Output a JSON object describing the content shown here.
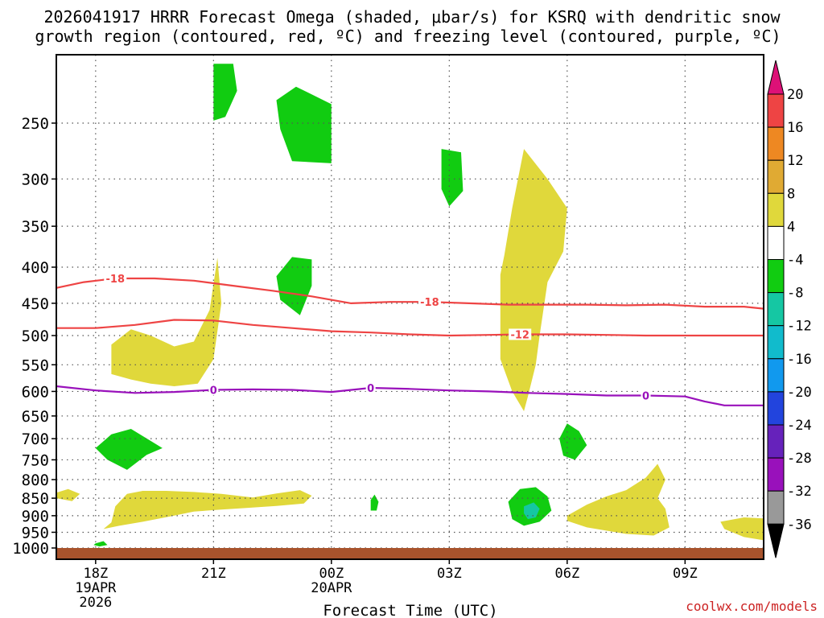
{
  "chart_data": {
    "type": "heatmap",
    "title_line1": "2026041917 HRRR Forecast Omega (shaded, μbar/s) for KSRQ with dendritic snow",
    "title_line2": "growth region (contoured, red, ºC) and freezing level (contoured, purple, ºC)",
    "xlabel": "Forecast Time (UTC)",
    "ylabel": "",
    "credit": "coolwx.com/models",
    "y_axis": {
      "scale": "log-pressure",
      "range": [
        1000,
        200
      ],
      "ticks": [
        {
          "value": 250,
          "label": "250"
        },
        {
          "value": 300,
          "label": "300"
        },
        {
          "value": 350,
          "label": "350"
        },
        {
          "value": 400,
          "label": "400"
        },
        {
          "value": 450,
          "label": "450"
        },
        {
          "value": 500,
          "label": "500"
        },
        {
          "value": 550,
          "label": "550"
        },
        {
          "value": 600,
          "label": "600"
        },
        {
          "value": 650,
          "label": "650"
        },
        {
          "value": 700,
          "label": "700"
        },
        {
          "value": 750,
          "label": "750"
        },
        {
          "value": 800,
          "label": "800"
        },
        {
          "value": 850,
          "label": "850"
        },
        {
          "value": 900,
          "label": "900"
        },
        {
          "value": 950,
          "label": "950"
        },
        {
          "value": 1000,
          "label": "1000"
        }
      ]
    },
    "x_axis": {
      "unit": "hours since 2026-04-19 17Z",
      "range": [
        0,
        18
      ],
      "ticks": [
        {
          "value": 1,
          "label": "18Z",
          "sub": [
            "19APR",
            "2026"
          ]
        },
        {
          "value": 4,
          "label": "21Z",
          "sub": []
        },
        {
          "value": 7,
          "label": "00Z",
          "sub": [
            "20APR"
          ]
        },
        {
          "value": 10,
          "label": "03Z",
          "sub": []
        },
        {
          "value": 13,
          "label": "06Z",
          "sub": []
        },
        {
          "value": 16,
          "label": "09Z",
          "sub": []
        }
      ]
    },
    "ground_level": 1000,
    "colors": {
      "green": "#11cc11",
      "teal": "#15c7a3",
      "yellow": "#e0d83b",
      "red_contour": "#ee4444",
      "purple_contour": "#9911bb",
      "ground": "#a8532c",
      "grid": "#555555"
    },
    "colorbar": {
      "ticks": [
        "20",
        "16",
        "12",
        "8",
        "4",
        "-4",
        "-8",
        "-12",
        "-16",
        "-20",
        "-24",
        "-28",
        "-32",
        "-36"
      ],
      "bands": [
        {
          "range": "16 to 20",
          "color": "#ee4444"
        },
        {
          "range": "12 to 16",
          "color": "#ee8822"
        },
        {
          "range": "8 to 12",
          "color": "#e0aa33"
        },
        {
          "range": "4 to 8",
          "color": "#e0d83b"
        },
        {
          "range": "-4 to 4",
          "color": "#ffffff"
        },
        {
          "range": "-8 to -4",
          "color": "#11cc11"
        },
        {
          "range": "-12 to -8",
          "color": "#15c7a3"
        },
        {
          "range": "-16 to -12",
          "color": "#11bbcc"
        },
        {
          "range": "-20 to -16",
          "color": "#1199ee"
        },
        {
          "range": "-24 to -20",
          "color": "#2244dd"
        },
        {
          "range": "-28 to -24",
          "color": "#6622bb"
        },
        {
          "range": "-32 to -28",
          "color": "#9911bb"
        },
        {
          "range": "-36 to -32",
          "color": "#999999"
        }
      ],
      "top_arrow_color": "#dd1177",
      "bottom_arrow_color": "#000000"
    },
    "regions": [
      {
        "name": "green-cell-1",
        "color": "green",
        "points": [
          [
            4.0,
            206
          ],
          [
            4.5,
            206
          ],
          [
            4.6,
            225
          ],
          [
            4.3,
            245
          ],
          [
            4.0,
            248
          ]
        ]
      },
      {
        "name": "green-cell-2",
        "color": "green",
        "points": [
          [
            5.6,
            232
          ],
          [
            6.1,
            222
          ],
          [
            7.0,
            235
          ],
          [
            7.0,
            285
          ],
          [
            6.0,
            283
          ],
          [
            5.7,
            255
          ]
        ]
      },
      {
        "name": "green-cell-3",
        "color": "green",
        "points": [
          [
            9.8,
            272
          ],
          [
            10.3,
            275
          ],
          [
            10.35,
            312
          ],
          [
            10.0,
            328
          ],
          [
            9.8,
            310
          ]
        ]
      },
      {
        "name": "green-cell-4",
        "color": "green",
        "points": [
          [
            5.6,
            412
          ],
          [
            6.0,
            387
          ],
          [
            6.5,
            390
          ],
          [
            6.5,
            425
          ],
          [
            6.2,
            468
          ],
          [
            5.7,
            445
          ]
        ]
      },
      {
        "name": "green-cell-5",
        "color": "green",
        "points": [
          [
            1.0,
            722
          ],
          [
            1.4,
            690
          ],
          [
            1.9,
            678
          ],
          [
            2.4,
            705
          ],
          [
            2.7,
            722
          ],
          [
            2.3,
            738
          ],
          [
            1.8,
            775
          ],
          [
            1.3,
            750
          ]
        ]
      },
      {
        "name": "green-cell-6",
        "color": "green",
        "points": [
          [
            12.8,
            700
          ],
          [
            13.0,
            666
          ],
          [
            13.3,
            683
          ],
          [
            13.5,
            715
          ],
          [
            13.2,
            750
          ],
          [
            12.9,
            740
          ]
        ]
      },
      {
        "name": "green-cell-7",
        "color": "green",
        "points": [
          [
            1.0,
            985
          ],
          [
            1.2,
            978
          ],
          [
            1.3,
            990
          ],
          [
            1.1,
            995
          ],
          [
            0.95,
            990
          ]
        ]
      },
      {
        "name": "green-cell-8",
        "color": "green",
        "points": [
          [
            8.0,
            855
          ],
          [
            8.1,
            840
          ],
          [
            8.2,
            860
          ],
          [
            8.15,
            885
          ],
          [
            8.0,
            885
          ]
        ]
      },
      {
        "name": "green-cell-9",
        "color": "green",
        "points": [
          [
            11.5,
            860
          ],
          [
            11.8,
            825
          ],
          [
            12.2,
            820
          ],
          [
            12.5,
            845
          ],
          [
            12.6,
            885
          ],
          [
            12.3,
            918
          ],
          [
            11.9,
            930
          ],
          [
            11.6,
            910
          ]
        ]
      },
      {
        "name": "teal-cell",
        "color": "teal",
        "points": [
          [
            11.9,
            873
          ],
          [
            12.15,
            862
          ],
          [
            12.3,
            880
          ],
          [
            12.2,
            905
          ],
          [
            12.0,
            910
          ],
          [
            11.9,
            893
          ]
        ]
      },
      {
        "name": "yellow-1",
        "color": "yellow",
        "points": [
          [
            1.4,
            515
          ],
          [
            1.9,
            490
          ],
          [
            2.4,
            500
          ],
          [
            3.0,
            518
          ],
          [
            3.5,
            510
          ],
          [
            3.9,
            460
          ],
          [
            4.1,
            388
          ],
          [
            4.2,
            450
          ],
          [
            4.0,
            540
          ],
          [
            3.8,
            562
          ],
          [
            3.6,
            585
          ],
          [
            3.0,
            590
          ],
          [
            2.4,
            585
          ],
          [
            1.9,
            577
          ],
          [
            1.4,
            567
          ]
        ]
      },
      {
        "name": "yellow-2",
        "color": "yellow",
        "points": [
          [
            0.0,
            835
          ],
          [
            0.3,
            825
          ],
          [
            0.6,
            838
          ],
          [
            0.4,
            858
          ],
          [
            0.0,
            850
          ]
        ]
      },
      {
        "name": "yellow-3",
        "color": "yellow",
        "points": [
          [
            1.5,
            873
          ],
          [
            1.8,
            838
          ],
          [
            2.2,
            830
          ],
          [
            2.8,
            830
          ],
          [
            3.5,
            833
          ],
          [
            4.2,
            838
          ],
          [
            5.0,
            848
          ],
          [
            5.6,
            837
          ],
          [
            6.2,
            828
          ],
          [
            6.5,
            843
          ],
          [
            6.3,
            865
          ],
          [
            5.6,
            872
          ],
          [
            4.8,
            878
          ],
          [
            4.2,
            882
          ],
          [
            3.5,
            888
          ],
          [
            2.9,
            902
          ],
          [
            2.2,
            918
          ],
          [
            1.6,
            930
          ],
          [
            1.2,
            940
          ],
          [
            1.4,
            920
          ]
        ]
      },
      {
        "name": "yellow-4",
        "color": "yellow",
        "points": [
          [
            11.3,
            410
          ],
          [
            11.4,
            385
          ],
          [
            11.6,
            330
          ],
          [
            11.9,
            272
          ],
          [
            12.5,
            300
          ],
          [
            13.0,
            330
          ],
          [
            12.9,
            380
          ],
          [
            12.5,
            420
          ],
          [
            12.3,
            500
          ],
          [
            12.2,
            550
          ],
          [
            12.0,
            610
          ],
          [
            11.9,
            640
          ],
          [
            11.6,
            600
          ],
          [
            11.3,
            540
          ]
        ]
      },
      {
        "name": "yellow-5",
        "color": "yellow",
        "points": [
          [
            13.0,
            900
          ],
          [
            13.5,
            868
          ],
          [
            14.0,
            845
          ],
          [
            14.5,
            828
          ],
          [
            15.0,
            795
          ],
          [
            15.3,
            760
          ],
          [
            15.5,
            800
          ],
          [
            15.3,
            850
          ],
          [
            15.5,
            880
          ],
          [
            15.6,
            935
          ],
          [
            15.2,
            960
          ],
          [
            14.5,
            955
          ],
          [
            13.5,
            935
          ],
          [
            13.0,
            915
          ]
        ]
      },
      {
        "name": "yellow-6",
        "color": "yellow",
        "points": [
          [
            16.9,
            918
          ],
          [
            17.5,
            905
          ],
          [
            18.0,
            908
          ],
          [
            18.0,
            975
          ],
          [
            17.5,
            965
          ],
          [
            17.0,
            940
          ]
        ]
      }
    ],
    "contours": [
      {
        "name": "contour-minus-18",
        "color": "red_contour",
        "label": "-18",
        "label_index": 2,
        "label_index2": 10,
        "points": [
          [
            0.0,
            428
          ],
          [
            0.7,
            420
          ],
          [
            1.5,
            415
          ],
          [
            2.5,
            415
          ],
          [
            3.5,
            418
          ],
          [
            4.5,
            425
          ],
          [
            5.5,
            432
          ],
          [
            6.5,
            440
          ],
          [
            7.5,
            450
          ],
          [
            8.5,
            448
          ],
          [
            9.5,
            448
          ],
          [
            10.5,
            450
          ],
          [
            11.5,
            452
          ],
          [
            12.5,
            452
          ],
          [
            13.5,
            452
          ],
          [
            14.5,
            453
          ],
          [
            15.5,
            452
          ],
          [
            16.5,
            455
          ],
          [
            17.5,
            455
          ],
          [
            18.0,
            458
          ]
        ]
      },
      {
        "name": "contour-minus-12",
        "color": "red_contour",
        "label": "-12",
        "label_index": 12,
        "points": [
          [
            0.0,
            488
          ],
          [
            1.0,
            488
          ],
          [
            2.0,
            483
          ],
          [
            3.0,
            475
          ],
          [
            4.0,
            476
          ],
          [
            5.0,
            483
          ],
          [
            6.0,
            488
          ],
          [
            7.0,
            493
          ],
          [
            8.0,
            495
          ],
          [
            9.0,
            498
          ],
          [
            10.0,
            500
          ],
          [
            11.0,
            499
          ],
          [
            11.8,
            498
          ],
          [
            13.0,
            498
          ],
          [
            14.0,
            499
          ],
          [
            15.0,
            500
          ],
          [
            16.0,
            500
          ],
          [
            17.0,
            500
          ],
          [
            18.0,
            500
          ]
        ]
      },
      {
        "name": "contour-zero",
        "color": "purple_contour",
        "label": "0",
        "label_index": 4,
        "label_index2": 8,
        "label_index3": 15,
        "points": [
          [
            0.0,
            590
          ],
          [
            1.0,
            598
          ],
          [
            2.0,
            603
          ],
          [
            3.0,
            601
          ],
          [
            4.0,
            597
          ],
          [
            5.0,
            596
          ],
          [
            6.0,
            597
          ],
          [
            7.0,
            601
          ],
          [
            8.0,
            593
          ],
          [
            9.0,
            595
          ],
          [
            10.0,
            598
          ],
          [
            11.0,
            600
          ],
          [
            12.0,
            603
          ],
          [
            13.0,
            605
          ],
          [
            14.0,
            608
          ],
          [
            15.0,
            608
          ],
          [
            16.0,
            610
          ],
          [
            16.5,
            620
          ],
          [
            17.0,
            628
          ],
          [
            18.0,
            628
          ]
        ]
      }
    ],
    "contour_label_values": [
      "-18",
      "-18",
      "-12",
      "0",
      "0",
      "0"
    ]
  }
}
